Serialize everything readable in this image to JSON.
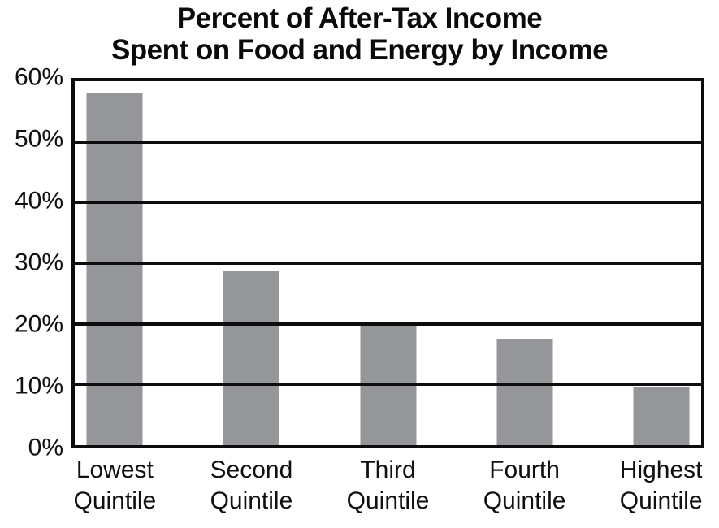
{
  "chart_data": {
    "type": "bar",
    "title": "Percent of After-Tax Income Spent on Food and Energy by Income",
    "title_lines": [
      "Percent of After-Tax Income",
      "Spent on Food and Energy by Income"
    ],
    "categories": [
      "Lowest Quintile",
      "Second Quintile",
      "Third Quintile",
      "Fourth Quintile",
      "Highest Quintile"
    ],
    "values": [
      58,
      28.7,
      19.8,
      17.5,
      9.7
    ],
    "xlabel": "",
    "ylabel": "",
    "ylim": [
      0,
      60
    ],
    "ytick_step": 10,
    "ytick_labels": [
      "0%",
      "10%",
      "20%",
      "30%",
      "40%",
      "50%",
      "60%"
    ],
    "grid": "horizontal",
    "legend_position": "none",
    "bar_color": "#949699",
    "line_color": "#0d0d0d"
  }
}
